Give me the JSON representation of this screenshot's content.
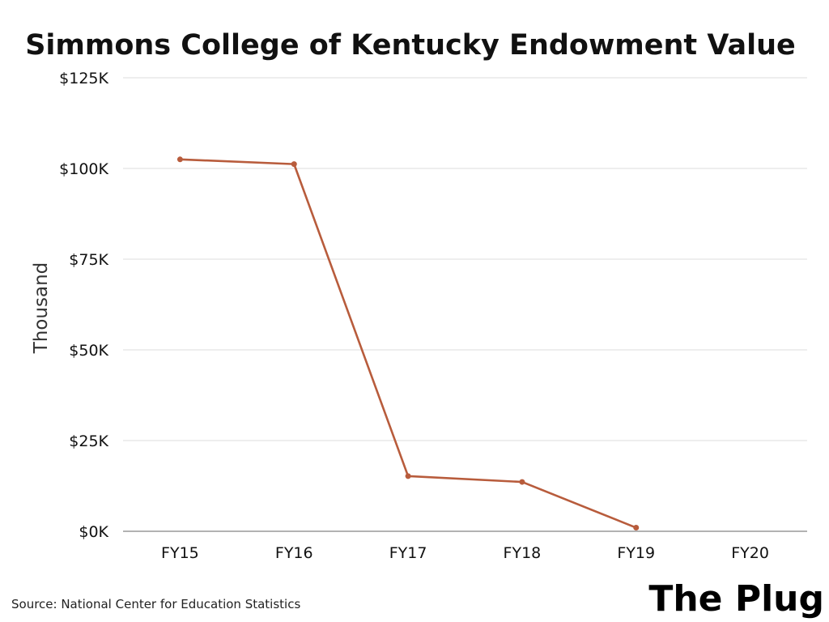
{
  "chart_data": {
    "type": "line",
    "title": "Simmons College of Kentucky Endowment Value",
    "xlabel": "",
    "ylabel": "Thousand",
    "categories": [
      "FY15",
      "FY16",
      "FY17",
      "FY18",
      "FY19",
      "FY20"
    ],
    "series": [
      {
        "values": [
          102.5,
          101.2,
          15.2,
          13.6,
          1.0,
          null
        ],
        "color": "#b85c3c"
      }
    ],
    "ylim": [
      0,
      125
    ],
    "yticks": [
      {
        "value": 0,
        "label": "$0K"
      },
      {
        "value": 25,
        "label": "$25K"
      },
      {
        "value": 50,
        "label": "$50K"
      },
      {
        "value": 75,
        "label": "$75K"
      },
      {
        "value": 100,
        "label": "$100K"
      },
      {
        "value": 125,
        "label": "$125K"
      }
    ],
    "grid": true,
    "legend": "none",
    "gridline_color": "#dddddd",
    "baseline_color": "#999999"
  },
  "footer": {
    "source": "Source: National Center for Education Statistics",
    "brand": "The Plug"
  }
}
